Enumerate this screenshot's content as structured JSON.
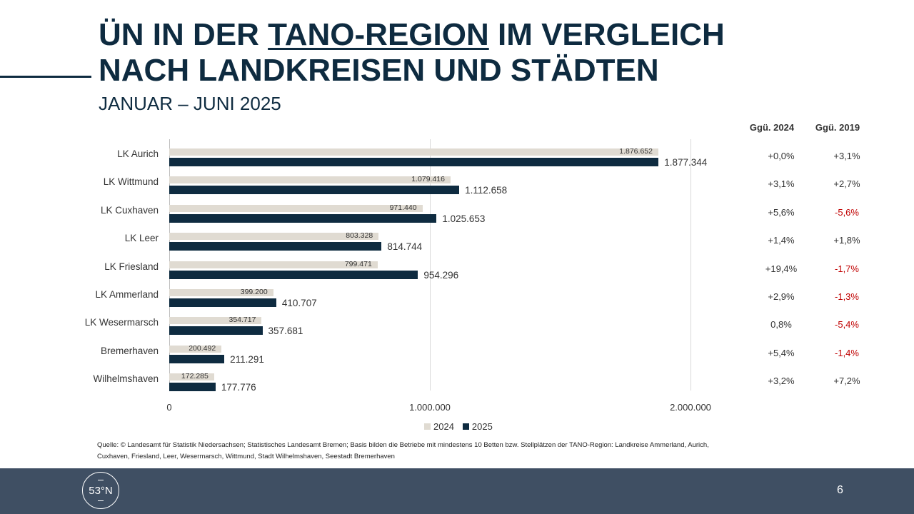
{
  "header": {
    "title_part1": "ÜN IN DER ",
    "title_underlined": "TANO-REGION",
    "title_part2": " IM VERGLEICH",
    "title_line2": "NACH LANDKREISEN UND STÄDTEN",
    "subtitle": "JANUAR – JUNI 2025"
  },
  "table": {
    "col1": "Ggü. 2024",
    "col2": "Ggü. 2019",
    "rows": [
      {
        "vs2024": "+0,0%",
        "vs2019": "+3,1%",
        "neg2019": false
      },
      {
        "vs2024": "+3,1%",
        "vs2019": "+2,7%",
        "neg2019": false
      },
      {
        "vs2024": "+5,6%",
        "vs2019": "-5,6%",
        "neg2019": true
      },
      {
        "vs2024": "+1,4%",
        "vs2019": "+1,8%",
        "neg2019": false
      },
      {
        "vs2024": "+19,4%",
        "vs2019": "-1,7%",
        "neg2019": true
      },
      {
        "vs2024": "+2,9%",
        "vs2019": "-1,3%",
        "neg2019": true
      },
      {
        "vs2024": "0,8%",
        "vs2019": "-5,4%",
        "neg2019": true
      },
      {
        "vs2024": "+5,4%",
        "vs2019": "-1,4%",
        "neg2019": true
      },
      {
        "vs2024": "+3,2%",
        "vs2019": "+7,2%",
        "neg2019": false
      }
    ]
  },
  "chart_data": {
    "type": "bar",
    "orientation": "horizontal",
    "categories": [
      "LK Aurich",
      "LK Wittmund",
      "LK Cuxhaven",
      "LK Leer",
      "LK Friesland",
      "LK Ammerland",
      "LK Wesermarsch",
      "Bremerhaven",
      "Wilhelmshaven"
    ],
    "series": [
      {
        "name": "2024",
        "color": "#e0dbd2",
        "values": [
          1876652,
          1079416,
          971440,
          803328,
          799471,
          399200,
          354717,
          200492,
          172285
        ],
        "labels": [
          "1.876.652",
          "1.079.416",
          "971.440",
          "803.328",
          "799.471",
          "399.200",
          "354.717",
          "200.492",
          "172.285"
        ]
      },
      {
        "name": "2025",
        "color": "#0e2b40",
        "values": [
          1877344,
          1112658,
          1025653,
          814744,
          954296,
          410707,
          357681,
          211291,
          177776
        ],
        "labels": [
          "1.877.344",
          "1.112.658",
          "1.025.653",
          "814.744",
          "954.296",
          "410.707",
          "357.681",
          "211.291",
          "177.776"
        ]
      }
    ],
    "xlim": [
      0,
      2000000
    ],
    "xticks": [
      0,
      1000000,
      2000000
    ],
    "xtick_labels": [
      "0",
      "1.000.000",
      "2.000.000"
    ],
    "legend": "bottom",
    "grid": true
  },
  "source": "Quelle: © Landesamt für Statistik Niedersachsen; Statistisches Landesamt Bremen; Basis bilden die Betriebe mit mindestens 10 Betten bzw. Stellplätzen der TANO-Region: Landkreise Ammerland, Aurich, Cuxhaven, Friesland, Leer, Wesermarsch, Wittmund, Stadt Wilhelmshaven, Seestadt Bremerhaven",
  "footer": {
    "logo_text": "53°N",
    "page": "6"
  }
}
